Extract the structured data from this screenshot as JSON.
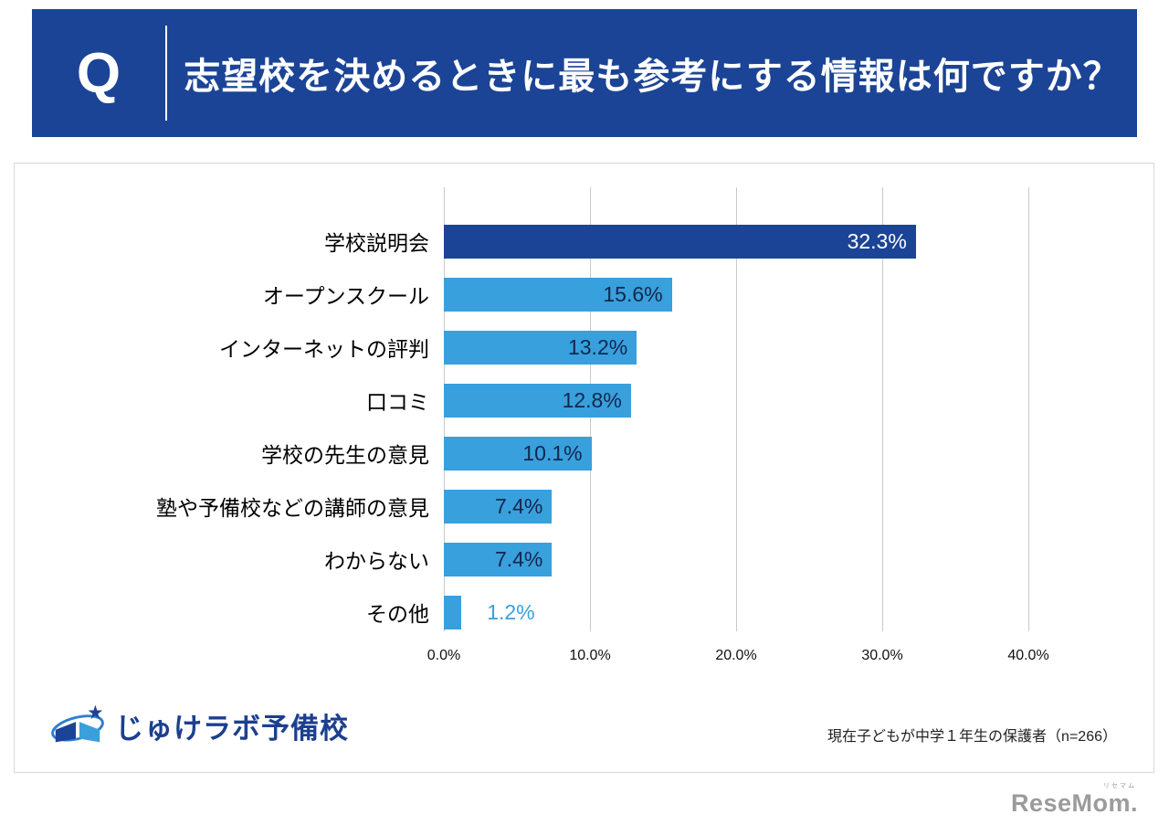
{
  "header": {
    "q_label": "Q",
    "title": "志望校を決めるときに最も参考にする情報は何ですか？"
  },
  "chart_data": {
    "type": "bar",
    "orientation": "horizontal",
    "title": "志望校を決めるときに最も参考にする情報は何ですか？",
    "categories": [
      "学校説明会",
      "オープンスクール",
      "インターネットの評判",
      "口コミ",
      "学校の先生の意見",
      "塾や予備校などの講師の意見",
      "わからない",
      "その他"
    ],
    "values": [
      32.3,
      15.6,
      13.2,
      12.8,
      10.1,
      7.4,
      7.4,
      1.2
    ],
    "value_labels": [
      "32.3%",
      "15.6%",
      "13.2%",
      "12.8%",
      "10.1%",
      "7.4%",
      "7.4%",
      "1.2%"
    ],
    "x_ticks": [
      "0.0%",
      "10.0%",
      "20.0%",
      "30.0%",
      "40.0%"
    ],
    "xlim": [
      0,
      40
    ],
    "grid": true,
    "legend": false,
    "bar_colors": {
      "highlight": "#1b4496",
      "default": "#38a0dc"
    },
    "highlight_index": 0,
    "highlight_value_color": "#ffffff",
    "value_label_color": "#13264e",
    "outside_label_index": 7,
    "outside_label_color": "#38a0dc"
  },
  "footer": {
    "logo_text": "じゅけラボ予備校",
    "note": "現在子どもが中学１年生の保護者（n=266）"
  },
  "branding": {
    "resemom_small": "リセマム",
    "resemom": "ReseMom."
  },
  "colors": {
    "header_bg": "#1b4496",
    "gridline": "#c9c9c9"
  }
}
